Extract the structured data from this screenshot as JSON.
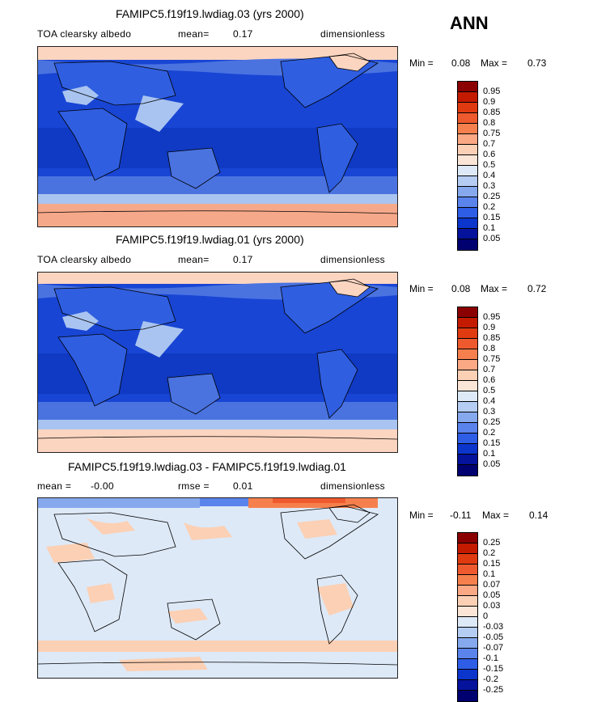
{
  "season": "ANN",
  "panels": [
    {
      "title": "FAMIPC5.f19f19.lwdiag.03 (yrs 2000)",
      "left_label": "TOA clearsky albedo",
      "center_label": "mean=",
      "center_value": "0.17",
      "right_label": "dimensionless",
      "min_label": "Min =",
      "min_value": "0.08",
      "max_label": "Max =",
      "max_value": "0.73",
      "colorbar": {
        "labels": [
          "0.95",
          "0.9",
          "0.85",
          "0.8",
          "0.75",
          "0.7",
          "0.6",
          "0.5",
          "0.4",
          "0.3",
          "0.25",
          "0.2",
          "0.15",
          "0.1",
          "0.05"
        ],
        "colors": [
          "#8b0000",
          "#c41a00",
          "#e03a10",
          "#ee5a2e",
          "#f6804d",
          "#fba884",
          "#fcd0b4",
          "#fbe5d6",
          "#dde9f7",
          "#b5cdf3",
          "#86a9ee",
          "#5a83ec",
          "#2e5de6",
          "#0c35cc",
          "#04129c",
          "#000070"
        ]
      }
    },
    {
      "title": "FAMIPC5.f19f19.lwdiag.01 (yrs 2000)",
      "left_label": "TOA clearsky albedo",
      "center_label": "mean=",
      "center_value": "0.17",
      "right_label": "dimensionless",
      "min_label": "Min =",
      "min_value": "0.08",
      "max_label": "Max =",
      "max_value": "0.72",
      "colorbar": {
        "labels": [
          "0.95",
          "0.9",
          "0.85",
          "0.8",
          "0.75",
          "0.7",
          "0.6",
          "0.5",
          "0.4",
          "0.3",
          "0.25",
          "0.2",
          "0.15",
          "0.1",
          "0.05"
        ],
        "colors": [
          "#8b0000",
          "#c41a00",
          "#e03a10",
          "#ee5a2e",
          "#f6804d",
          "#fba884",
          "#fcd0b4",
          "#fbe5d6",
          "#dde9f7",
          "#b5cdf3",
          "#86a9ee",
          "#5a83ec",
          "#2e5de6",
          "#0c35cc",
          "#04129c",
          "#000070"
        ]
      }
    },
    {
      "title": "FAMIPC5.f19f19.lwdiag.03 - FAMIPC5.f19f19.lwdiag.01",
      "left_label": "mean =",
      "left_value": "-0.00",
      "center_label": "rmse =",
      "center_value": "0.01",
      "right_label": "dimensionless",
      "min_label": "Min =",
      "min_value": "-0.11",
      "max_label": "Max =",
      "max_value": "0.14",
      "colorbar": {
        "labels": [
          "0.25",
          "0.2",
          "0.15",
          "0.1",
          "0.07",
          "0.05",
          "0.03",
          "0",
          "-0.03",
          "-0.05",
          "-0.07",
          "-0.1",
          "-0.15",
          "-0.2",
          "-0.25"
        ],
        "colors": [
          "#8b0000",
          "#c41a00",
          "#e03a10",
          "#ee5a2e",
          "#f6804d",
          "#fba884",
          "#fcd0b4",
          "#fbe5d6",
          "#dde9f7",
          "#b5cdf3",
          "#86a9ee",
          "#5a83ec",
          "#2e5de6",
          "#0c35cc",
          "#04129c",
          "#000070"
        ]
      }
    }
  ],
  "map_colors": {
    "polar_high": "#f6a98a",
    "polar_mid": "#fcd5c0",
    "light_blue": "#a9c4f0",
    "mid_blue": "#4a73e0",
    "land_blue": "#2f5ee0",
    "ocean_blue": "#1845d4",
    "ocean_deep": "#0c33b8",
    "diff_bg": "#dde9f7",
    "diff_pos": "#fcd0b4",
    "diff_pos_strong": "#f6804d",
    "diff_neg": "#86a9ee"
  }
}
